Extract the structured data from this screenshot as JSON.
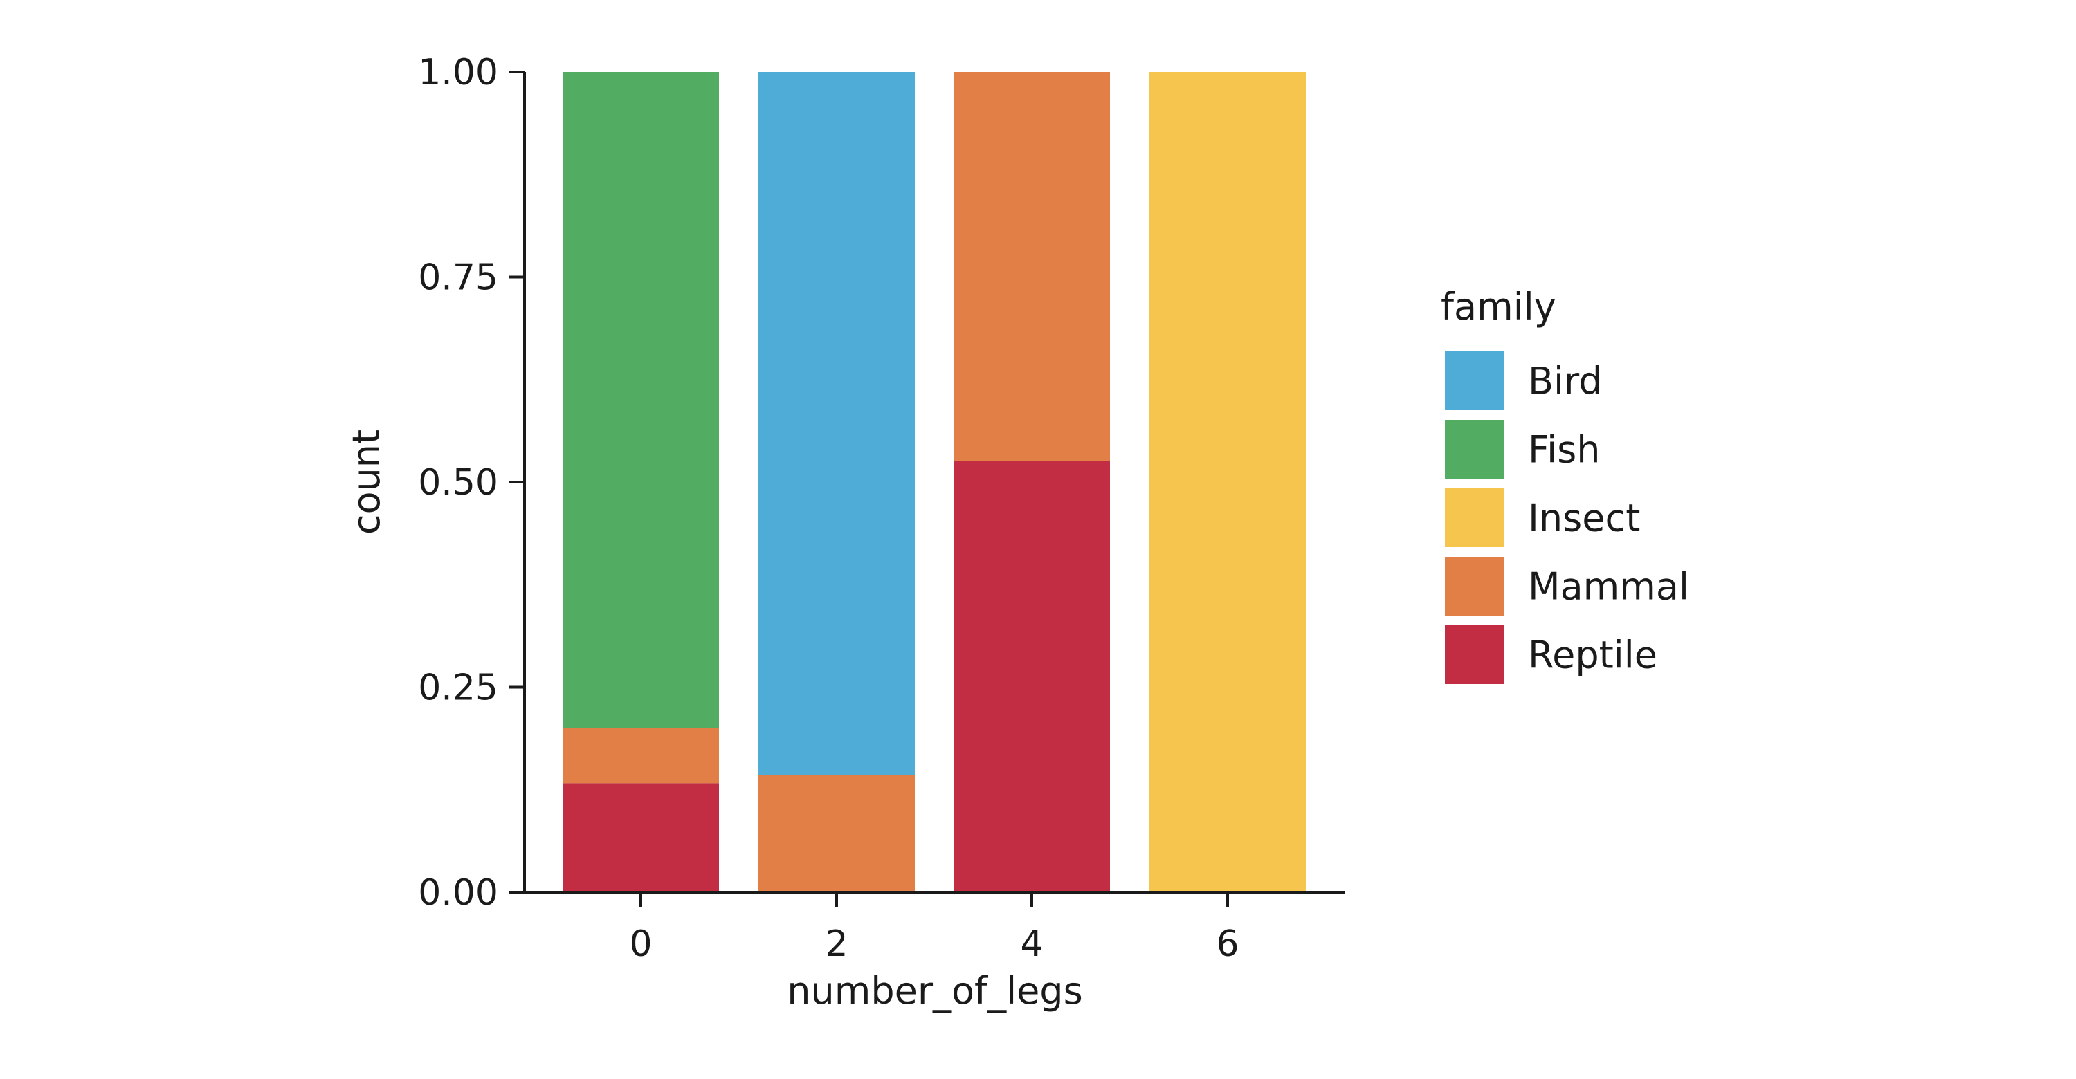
{
  "chart_data": {
    "type": "bar",
    "stacked": true,
    "normalized": true,
    "categories": [
      "0",
      "2",
      "4",
      "6"
    ],
    "series": [
      {
        "name": "Reptile",
        "values": [
          0.133,
          0.0,
          0.526,
          0.0
        ]
      },
      {
        "name": "Mammal",
        "values": [
          0.067,
          0.143,
          0.474,
          0.0
        ]
      },
      {
        "name": "Fish",
        "values": [
          0.8,
          0.0,
          0.0,
          0.0
        ]
      },
      {
        "name": "Bird",
        "values": [
          0.0,
          0.857,
          0.0,
          0.0
        ]
      },
      {
        "name": "Insect",
        "values": [
          0.0,
          0.0,
          0.0,
          1.0
        ]
      }
    ],
    "xlabel": "number_of_legs",
    "ylabel": "count",
    "ylim": [
      0,
      1
    ],
    "yticks": [
      "0.00",
      "0.25",
      "0.50",
      "0.75",
      "1.00"
    ],
    "grid": false,
    "legend": {
      "title": "family",
      "placement": "right",
      "entries": [
        "Bird",
        "Fish",
        "Insect",
        "Mammal",
        "Reptile"
      ]
    },
    "colors": {
      "Bird": "#4eacd6",
      "Fish": "#52ad62",
      "Insect": "#f5c54e",
      "Mammal": "#e27f47",
      "Reptile": "#c22d44"
    }
  }
}
